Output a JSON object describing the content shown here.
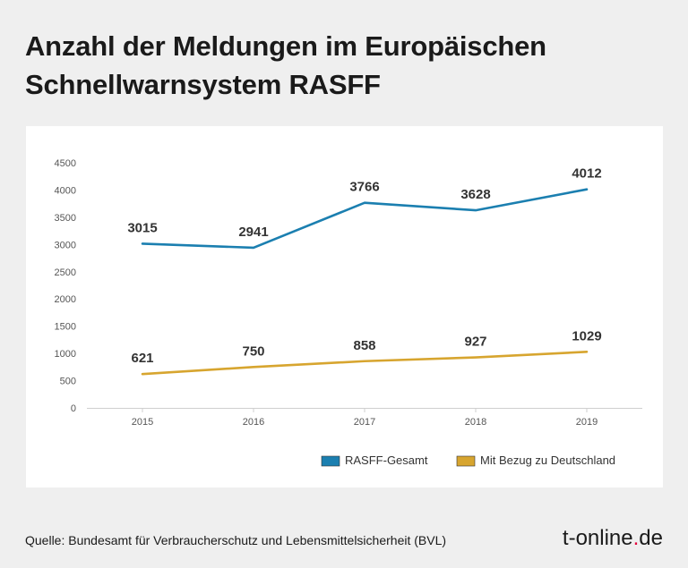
{
  "title": "Anzahl der Meldungen im Europäischen Schnellwarnsystem RASFF",
  "source": "Quelle: Bundesamt für Verbraucherschutz und Lebensmittelsicherheit (BVL)",
  "brand": {
    "name": "t-online",
    "dot": ".",
    "tld": "de",
    "accent": "#e4003a"
  },
  "chart_data": {
    "type": "line",
    "categories": [
      "2015",
      "2016",
      "2017",
      "2018",
      "2019"
    ],
    "series": [
      {
        "name": "RASFF-Gesamt",
        "color": "#1b7fb0",
        "values": [
          3015,
          2941,
          3766,
          3628,
          4012
        ]
      },
      {
        "name": "Mit Bezug zu Deutschland",
        "color": "#d7a52f",
        "values": [
          621,
          750,
          858,
          927,
          1029
        ]
      }
    ],
    "ylim": [
      0,
      4500
    ],
    "yticks": [
      0,
      500,
      1000,
      1500,
      2000,
      2500,
      3000,
      3500,
      4000,
      4500
    ],
    "grid": false,
    "legend": "bottom-right"
  }
}
